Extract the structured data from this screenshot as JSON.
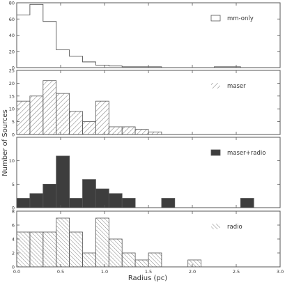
{
  "chart_data": {
    "type": "histogram",
    "shared_x_label": "Radius (pc)",
    "shared_y_label": "Number of Sources",
    "bin_edges": [
      0.0,
      0.15,
      0.3,
      0.45,
      0.6,
      0.75,
      0.9,
      1.05,
      1.2,
      1.35,
      1.5,
      1.65,
      1.8,
      1.95,
      2.1,
      2.25,
      2.4,
      2.55,
      2.7,
      2.85,
      3.0
    ],
    "xlim": [
      0,
      3
    ],
    "x_ticks": [
      "0.0",
      "0.5",
      "1.0",
      "1.5",
      "2.0",
      "2.5",
      "3.0"
    ],
    "x_tick_values": [
      0,
      0.5,
      1,
      1.5,
      2,
      2.5,
      3
    ],
    "panels": [
      {
        "name": "mm-only",
        "legend_label": "mm-only",
        "style": "outline",
        "ylim": [
          0,
          80
        ],
        "y_ticks": [
          0,
          20,
          40,
          60,
          80
        ],
        "y_tick_labels": [
          "0",
          "20",
          "40",
          "60",
          "80"
        ],
        "counts": [
          65,
          78,
          57,
          22,
          14,
          7,
          3,
          2,
          1,
          1,
          1,
          0,
          0,
          0,
          0,
          1,
          1,
          0,
          0,
          0
        ]
      },
      {
        "name": "maser",
        "legend_label": "maser",
        "style": "hatch",
        "ylim": [
          0,
          25
        ],
        "y_ticks": [
          0,
          5,
          10,
          15,
          20,
          25
        ],
        "y_tick_labels": [
          "0",
          "5",
          "10",
          "15",
          "20",
          "25"
        ],
        "counts": [
          13,
          15,
          21,
          16,
          9,
          5,
          13,
          3,
          3,
          2,
          1,
          0,
          0,
          0,
          0,
          0,
          0,
          0,
          0,
          0
        ]
      },
      {
        "name": "maser+radio",
        "legend_label": "maser+radio",
        "style": "solid",
        "ylim": [
          0,
          15
        ],
        "y_ticks": [
          0,
          5,
          10,
          15
        ],
        "y_tick_labels": [
          "0",
          "5",
          "10",
          ""
        ],
        "counts": [
          2,
          3,
          5,
          11,
          2,
          6,
          4,
          3,
          2,
          0,
          0,
          2,
          0,
          0,
          0,
          0,
          0,
          2,
          0,
          0
        ]
      },
      {
        "name": "radio",
        "legend_label": "radio",
        "style": "cross-hatch",
        "ylim": [
          0,
          8
        ],
        "y_ticks": [
          0,
          2,
          4,
          6,
          8
        ],
        "y_tick_labels": [
          "0",
          "2",
          "4",
          "6",
          "8"
        ],
        "counts": [
          5,
          5,
          5,
          7,
          5,
          2,
          7,
          4,
          2,
          1,
          2,
          0,
          0,
          1,
          0,
          0,
          0,
          0,
          0,
          0
        ]
      }
    ]
  },
  "colors": {
    "axis": "#555555",
    "bar_outline": "#555555",
    "solid_fill": "#3d3d3d",
    "hatch": "#666666"
  }
}
